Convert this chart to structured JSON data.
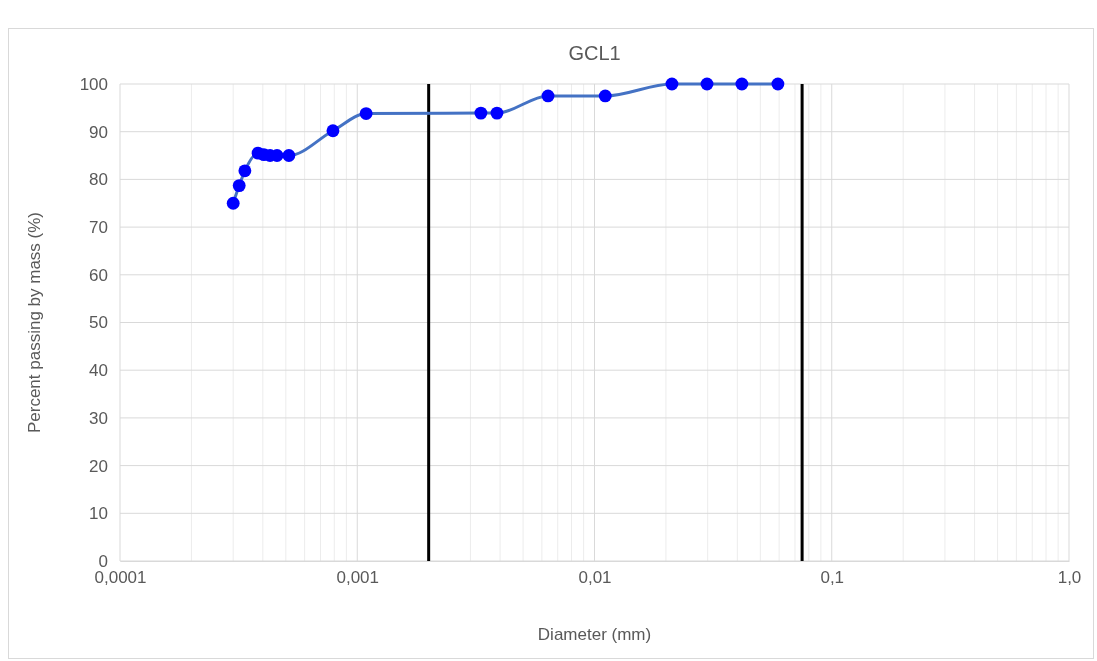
{
  "chart_data": {
    "type": "line",
    "title": "GCL1",
    "xlabel": "Diameter (mm)",
    "ylabel": "Percent passing by mass (%)",
    "log": "x",
    "x": [
      0.0003,
      0.000318,
      0.000336,
      0.000382,
      0.000404,
      0.000429,
      0.000459,
      0.000515,
      0.00079,
      0.00109,
      0.00332,
      0.00388,
      0.00637,
      0.0111,
      0.0212,
      0.0298,
      0.0418,
      0.0593
    ],
    "series": [
      {
        "color": "#4472c4",
        "marker": "none",
        "values": [
          75,
          78.7,
          81.8,
          85.5,
          85.2,
          85,
          85,
          85,
          90.2,
          93.8,
          93.9,
          93.9,
          97.5,
          97.5,
          100,
          100,
          100,
          100
        ]
      },
      {
        "type": "scatter",
        "color": "#0000ff",
        "marker": "circle",
        "values": [
          75,
          78.7,
          81.8,
          85.5,
          85.2,
          85,
          85,
          85,
          90.2,
          93.8,
          93.9,
          93.9,
          97.5,
          97.5,
          100,
          100,
          100,
          100
        ]
      }
    ],
    "xlim": [
      0.0001,
      1
    ],
    "xticks": [
      {
        "value": 0.0001,
        "label": "0,0001"
      },
      {
        "value": 0.001,
        "label": "0,001"
      },
      {
        "value": 0.01,
        "label": "0,01"
      },
      {
        "value": 0.1,
        "label": "0,1"
      },
      {
        "value": 1,
        "label": "1,0"
      }
    ],
    "ylim": [
      0,
      100
    ],
    "yticks": [
      0,
      10,
      20,
      30,
      40,
      50,
      60,
      70,
      80,
      90,
      100
    ],
    "grid": true,
    "ref_lines": [
      {
        "axis": "x",
        "value": 0.002,
        "color": "#000000"
      },
      {
        "axis": "x",
        "value": 0.075,
        "color": "#000000"
      }
    ]
  }
}
